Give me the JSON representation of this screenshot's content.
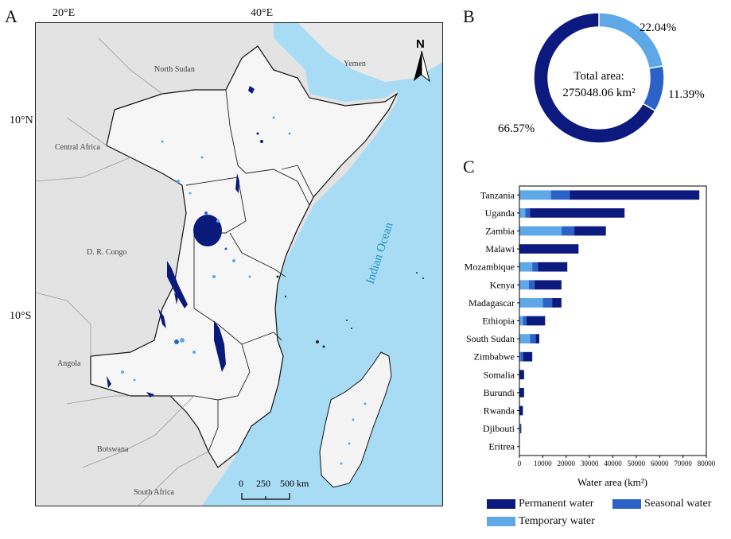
{
  "panels": {
    "a": "A",
    "b": "B",
    "c": "C"
  },
  "map": {
    "lon_labels": [
      "20°E",
      "40°E"
    ],
    "lat_labels": [
      "10°N",
      "10°S"
    ],
    "north_label": "N",
    "ocean_label": "Indian   Ocean",
    "region_labels": {
      "north_sudan": "North Sudan",
      "yemen": "Yemen",
      "central_africa": "Central Africa",
      "dr_congo": "D. R. Congo",
      "angola": "Angola",
      "botswana": "Botswana",
      "south_africa": "South Africa"
    },
    "scale_labels": [
      "0",
      "250",
      "500 km"
    ],
    "colors": {
      "ocean": "#a8dcf5",
      "land_study": "#f2f2f2",
      "land_outside": "#e2e2e2",
      "permanent": "#0a1a7a",
      "seasonal": "#2c62c8",
      "temporary": "#5ea8e8"
    },
    "icons": {
      "north_arrow": "north-arrow-icon"
    }
  },
  "donut": {
    "center_line1": "Total area:",
    "center_line2": "275048.06 km²",
    "slices": [
      {
        "name": "Permanent water",
        "percent": 66.57,
        "label": "66.57%",
        "color": "#0c1a80"
      },
      {
        "name": "Temporary water",
        "percent": 22.04,
        "label": "22.04%",
        "color": "#5ea8e8"
      },
      {
        "name": "Seasonal water",
        "percent": 11.39,
        "label": "11.39%",
        "color": "#2c62c8"
      }
    ]
  },
  "chart_data": {
    "type": "bar",
    "orientation": "horizontal",
    "stacked": true,
    "categories": [
      "Tanzania",
      "Uganda",
      "Zambia",
      "Malawi",
      "Mozambique",
      "Kenya",
      "Madagascar",
      "Ethiopia",
      "South Sudan",
      "Zimbabwe",
      "Somalia",
      "Burundi",
      "Rwanda",
      "Djibouti",
      "Eritrea"
    ],
    "series": [
      {
        "name": "Temporary water",
        "color": "#5ea8e8",
        "values": [
          13500,
          2500,
          18000,
          0,
          5500,
          4000,
          10000,
          1500,
          4500,
          500,
          0,
          0,
          0,
          300,
          0
        ]
      },
      {
        "name": "Seasonal water",
        "color": "#2c62c8",
        "values": [
          8000,
          2000,
          5500,
          0,
          2500,
          2500,
          4000,
          1500,
          2500,
          1200,
          0,
          0,
          0,
          200,
          0
        ]
      },
      {
        "name": "Permanent water",
        "color": "#0c1a80",
        "values": [
          55500,
          40500,
          13500,
          25300,
          12500,
          11500,
          4000,
          8000,
          1500,
          3800,
          2000,
          2000,
          1500,
          300,
          100
        ]
      }
    ],
    "xlabel": "Water area (km²)",
    "xlim": [
      0,
      80000
    ],
    "xticks": [
      0,
      10000,
      20000,
      30000,
      40000,
      50000,
      60000,
      70000,
      80000
    ],
    "xtick_labels": [
      "0",
      "10000",
      "20000",
      "30000",
      "40000",
      "50000",
      "60000",
      "70000",
      "80000"
    ],
    "legend": [
      "Permanent water",
      "Seasonal water",
      "Temporary water"
    ],
    "legend_position": "bottom"
  }
}
